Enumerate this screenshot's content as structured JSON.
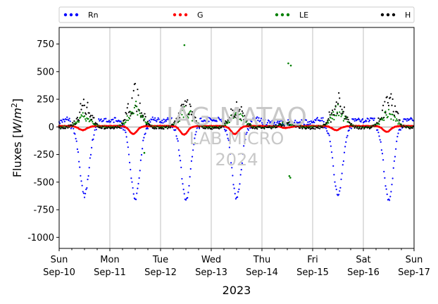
{
  "chart_data": {
    "type": "scatter",
    "title": "",
    "xlabel": "2023",
    "ylabel": "Fluxes [W/m²]",
    "ylim": [
      -1100,
      900
    ],
    "xlim": [
      0,
      7
    ],
    "y_ticks": [
      -1000,
      -750,
      -500,
      -250,
      0,
      250,
      500,
      750
    ],
    "x_ticks": [
      {
        "x": 0,
        "day": "Sun",
        "date": "Sep-10"
      },
      {
        "x": 1,
        "day": "Mon",
        "date": "Sep-11"
      },
      {
        "x": 2,
        "day": "Tue",
        "date": "Sep-12"
      },
      {
        "x": 3,
        "day": "Wed",
        "date": "Sep-13"
      },
      {
        "x": 4,
        "day": "Thu",
        "date": "Sep-14"
      },
      {
        "x": 5,
        "day": "Fri",
        "date": "Sep-15"
      },
      {
        "x": 6,
        "day": "Sat",
        "date": "Sep-16"
      },
      {
        "x": 7,
        "day": "Sun",
        "date": "Sep-17"
      }
    ],
    "grid": "vertical",
    "legend_position": "top",
    "series": [
      {
        "name": "Rn",
        "color": "#0000ff",
        "note_peak_by_day": [
          -620,
          -650,
          -660,
          -645,
          0,
          -620,
          -660
        ]
      },
      {
        "name": "G",
        "color": "#ff0000",
        "note_peak_by_day": [
          -30,
          -65,
          -70,
          -65,
          -10,
          -30,
          -45
        ]
      },
      {
        "name": "LE",
        "color": "#008000",
        "note_peak_by_day": [
          110,
          190,
          160,
          130,
          40,
          170,
          140
        ]
      },
      {
        "name": "H",
        "color": "#000000",
        "note_peak_by_day": [
          250,
          380,
          245,
          235,
          60,
          305,
          320
        ]
      }
    ],
    "outliers": [
      {
        "series": "LE",
        "x": 2.47,
        "y": 740
      },
      {
        "series": "LE",
        "x": 4.52,
        "y": 575
      },
      {
        "series": "LE",
        "x": 4.57,
        "y": 555
      },
      {
        "series": "LE",
        "x": 4.54,
        "y": -445
      },
      {
        "series": "LE",
        "x": 4.56,
        "y": -460
      },
      {
        "series": "LE",
        "x": 1.68,
        "y": -235
      },
      {
        "series": "LE",
        "x": 2.68,
        "y": -150
      }
    ]
  },
  "watermark": {
    "line1": "IAG-MATAO",
    "line2": "LAB MICRO",
    "line3": "2024"
  }
}
